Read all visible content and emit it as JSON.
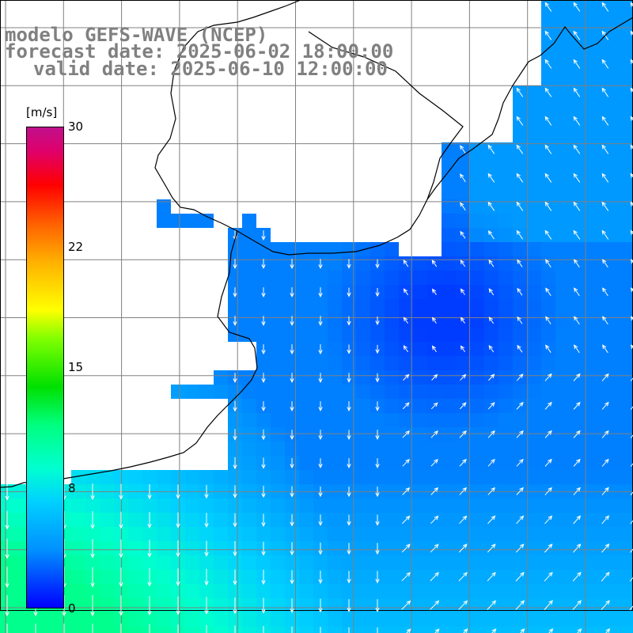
{
  "map": {
    "title_line1": "modelo GEFS-WAVE (NCEP)",
    "title_line2": "forecast date: 2025-06-02 18:00:00",
    "title_line3": "valid date: 2025-06-10 12:00:00",
    "variable": "wind speed and direction",
    "colors": {
      "land": "#ffffff",
      "coastline": "#000000",
      "grid": "#808080",
      "arrows": "#ffffff"
    }
  },
  "colorbar": {
    "unit": "[m/s]",
    "tick_labels": [
      "30",
      "22",
      "15",
      "8",
      "0"
    ],
    "tick_values": [
      30,
      22,
      15,
      8,
      0
    ],
    "range": [
      0,
      30
    ],
    "color_stops": [
      "#0000ff",
      "#0090ff",
      "#00d0ff",
      "#00ffd0",
      "#00ff80",
      "#00e000",
      "#80ff00",
      "#ffff00",
      "#ffb000",
      "#ff6000",
      "#ff0000",
      "#c0108c"
    ]
  },
  "wind_field": {
    "speed_range_shown_m_s": [
      2,
      11
    ],
    "prevailing_direction_south": "arrows pointing south (wind toward S) over western/southern waters",
    "prevailing_direction_east": "arrows pointing north-east over eastern open ocean"
  }
}
